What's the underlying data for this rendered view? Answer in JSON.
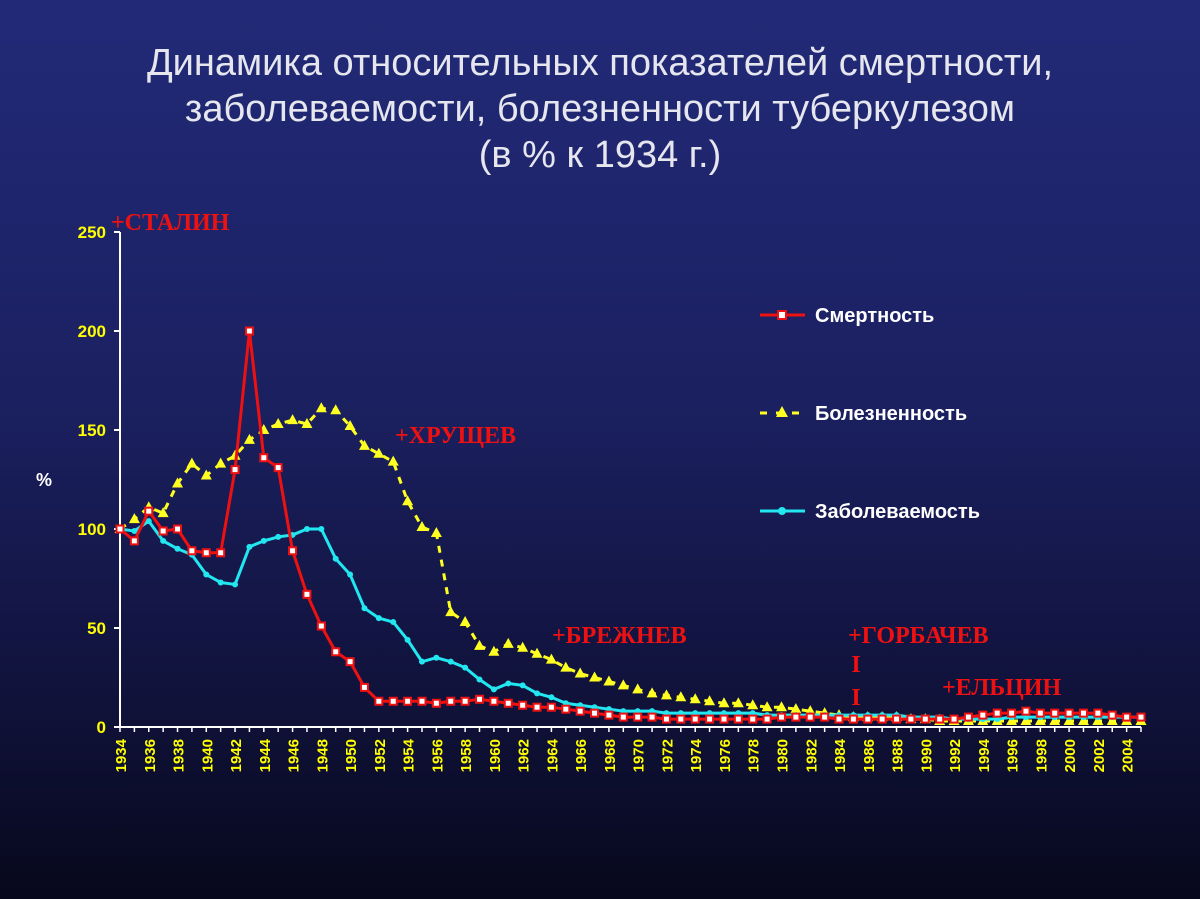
{
  "title": {
    "line1": "Динамика относительных показателей смертности,",
    "line2": "заболеваемости, болезненности туберкулезом",
    "line3": "(в % к 1934 г.)"
  },
  "chart_data": {
    "type": "line",
    "ylabel": "%",
    "ylim": [
      0,
      250
    ],
    "yticks": [
      "0",
      "50",
      "100",
      "150",
      "200",
      "250"
    ],
    "x": [
      1934,
      1935,
      1936,
      1937,
      1938,
      1939,
      1940,
      1941,
      1942,
      1943,
      1944,
      1945,
      1946,
      1947,
      1948,
      1949,
      1950,
      1951,
      1952,
      1953,
      1954,
      1955,
      1956,
      1957,
      1958,
      1959,
      1960,
      1961,
      1962,
      1963,
      1964,
      1965,
      1966,
      1967,
      1968,
      1969,
      1970,
      1971,
      1972,
      1973,
      1974,
      1975,
      1976,
      1977,
      1978,
      1979,
      1980,
      1981,
      1982,
      1983,
      1984,
      1985,
      1986,
      1987,
      1988,
      1989,
      1990,
      1991,
      1992,
      1993,
      1994,
      1995,
      1996,
      1997,
      1998,
      1999,
      2000,
      2001,
      2002,
      2003,
      2004,
      2005
    ],
    "xticks": [
      "1934",
      "1936",
      "1938",
      "1940",
      "1942",
      "1944",
      "1946",
      "1948",
      "1950",
      "1952",
      "1954",
      "1956",
      "1958",
      "1960",
      "1962",
      "1964",
      "1966",
      "1968",
      "1970",
      "1972",
      "1974",
      "1976",
      "1978",
      "1980",
      "1982",
      "1984",
      "1986",
      "1988",
      "1990",
      "1992",
      "1994",
      "1996",
      "1998",
      "2000",
      "2002",
      "2004"
    ],
    "grid": false,
    "legend_position": "right",
    "series": [
      {
        "name": "Смертность",
        "color": "#ee1111",
        "marker": "square",
        "style": "solid",
        "values": [
          100,
          94,
          109,
          99,
          100,
          89,
          88,
          88,
          130,
          200,
          136,
          131,
          89,
          67,
          51,
          38,
          33,
          20,
          13,
          13,
          13,
          13,
          12,
          13,
          13,
          14,
          13,
          12,
          11,
          10,
          10,
          9,
          8,
          7,
          6,
          5,
          5,
          5,
          4,
          4,
          4,
          4,
          4,
          4,
          4,
          4,
          5,
          5,
          5,
          5,
          4,
          4,
          4,
          4,
          4,
          4,
          4,
          4,
          4,
          5,
          6,
          7,
          7,
          8,
          7,
          7,
          7,
          7,
          7,
          6,
          5,
          5
        ]
      },
      {
        "name": "Болезненность",
        "color": "#ffff22",
        "marker": "triangle",
        "style": "dashed",
        "values": [
          100,
          105,
          111,
          108,
          123,
          133,
          127,
          133,
          137,
          145,
          150,
          153,
          155,
          153,
          161,
          160,
          152,
          142,
          138,
          134,
          114,
          101,
          98,
          58,
          53,
          41,
          38,
          42,
          40,
          37,
          34,
          30,
          27,
          25,
          23,
          21,
          19,
          17,
          16,
          15,
          14,
          13,
          12,
          12,
          11,
          10,
          10,
          9,
          8,
          7,
          6,
          5,
          5,
          5,
          5,
          4,
          4,
          3,
          3,
          3,
          3,
          3,
          3,
          3,
          3,
          3,
          3,
          3,
          3,
          3,
          3,
          3
        ]
      },
      {
        "name": "Заболеваемость",
        "color": "#22e6f0",
        "marker": "circle",
        "style": "solid",
        "values": [
          100,
          99,
          104,
          94,
          90,
          87,
          77,
          73,
          72,
          91,
          94,
          96,
          97,
          100,
          100,
          85,
          77,
          60,
          55,
          53,
          44,
          33,
          35,
          33,
          30,
          24,
          19,
          22,
          21,
          17,
          15,
          12,
          11,
          10,
          9,
          8,
          8,
          8,
          7,
          7,
          7,
          7,
          7,
          7,
          7,
          6,
          6,
          6,
          6,
          6,
          6,
          6,
          6,
          6,
          6,
          5,
          5,
          5,
          4,
          4,
          4,
          4,
          5,
          5,
          5,
          5,
          5,
          5,
          5,
          5,
          5,
          5
        ]
      }
    ],
    "annotations": [
      {
        "text": "+СТАЛИН"
      },
      {
        "text": "+ХРУЩЕВ"
      },
      {
        "text": "+БРЕЖНЕВ"
      },
      {
        "text": "+ГОРБАЧЕВ"
      },
      {
        "text": "I"
      },
      {
        "text": "I"
      },
      {
        "text": "+ЕЛЬЦИН"
      }
    ]
  }
}
